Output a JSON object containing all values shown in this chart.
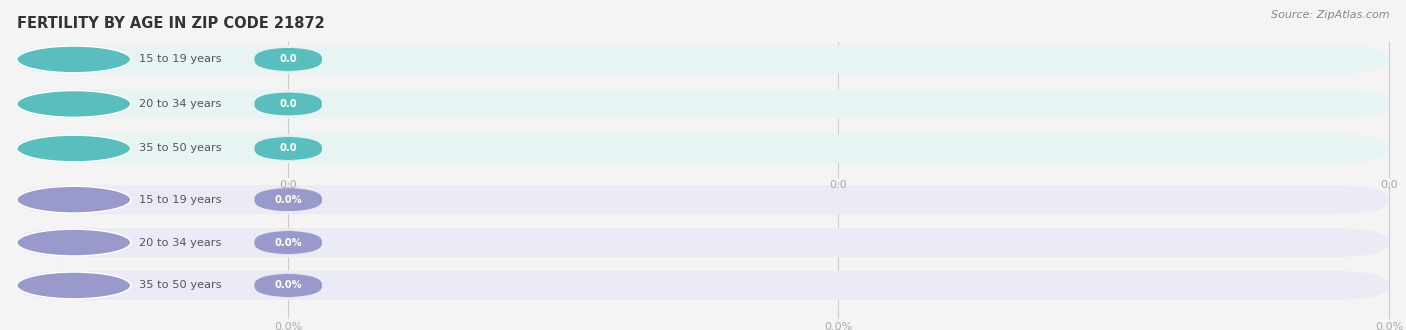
{
  "title": "FERTILITY BY AGE IN ZIP CODE 21872",
  "source_text": "Source: ZipAtlas.com",
  "top_rows": [
    {
      "label": "15 to 19 years",
      "value": 0.0,
      "display": "0.0"
    },
    {
      "label": "20 to 34 years",
      "value": 0.0,
      "display": "0.0"
    },
    {
      "label": "35 to 50 years",
      "value": 0.0,
      "display": "0.0"
    }
  ],
  "bottom_rows": [
    {
      "label": "15 to 19 years",
      "value": 0.0,
      "display": "0.0%"
    },
    {
      "label": "20 to 34 years",
      "value": 0.0,
      "display": "0.0%"
    },
    {
      "label": "35 to 50 years",
      "value": 0.0,
      "display": "0.0%"
    }
  ],
  "top_color_circle": "#5abebe",
  "top_color_bar_bg": "#e8f3f3",
  "top_color_value_bg": "#5abebe",
  "top_color_value_text": "#ffffff",
  "top_color_label_text": "#555555",
  "bottom_color_circle": "#9999cc",
  "bottom_color_bar_bg": "#ebebf5",
  "bottom_color_value_bg": "#9999cc",
  "bottom_color_value_text": "#ffffff",
  "bottom_color_label_text": "#555555",
  "background_color": "#f4f4f4",
  "title_color": "#333333",
  "source_color": "#888888",
  "tick_label_color": "#aaaaaa",
  "grid_color": "#cccccc"
}
